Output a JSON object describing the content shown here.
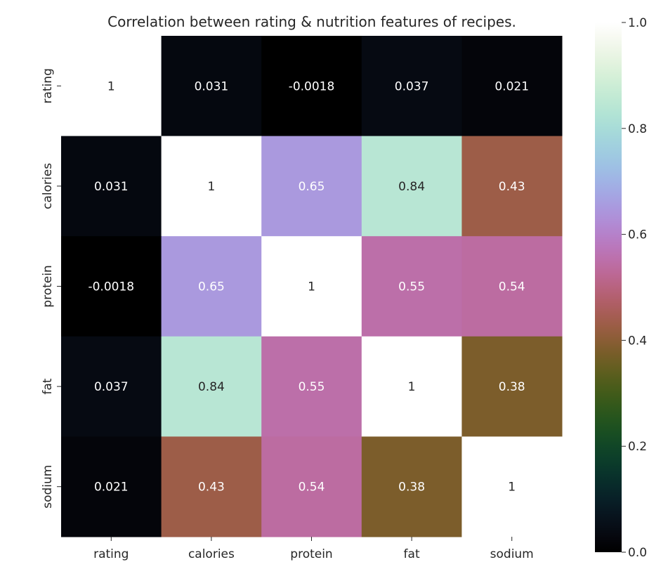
{
  "chart_data": {
    "type": "heatmap",
    "title": "Correlation between rating & nutrition features of recipes.",
    "xlabel": "",
    "ylabel": "",
    "x_labels": [
      "rating",
      "calories",
      "protein",
      "fat",
      "sodium"
    ],
    "y_labels": [
      "rating",
      "calories",
      "protein",
      "fat",
      "sodium"
    ],
    "values": [
      [
        1,
        0.031,
        -0.0018,
        0.037,
        0.021
      ],
      [
        0.031,
        1,
        0.65,
        0.84,
        0.43
      ],
      [
        -0.0018,
        0.65,
        1,
        0.55,
        0.54
      ],
      [
        0.037,
        0.84,
        0.55,
        1,
        0.38
      ],
      [
        0.021,
        0.43,
        0.54,
        0.38,
        1
      ]
    ],
    "annotations": [
      [
        "1",
        "0.031",
        "-0.0018",
        "0.037",
        "0.021"
      ],
      [
        "0.031",
        "1",
        "0.65",
        "0.84",
        "0.43"
      ],
      [
        "-0.0018",
        "0.65",
        "1",
        "0.55",
        "0.54"
      ],
      [
        "0.037",
        "0.84",
        "0.55",
        "1",
        "0.38"
      ],
      [
        "0.021",
        "0.43",
        "0.54",
        "0.38",
        "1"
      ]
    ],
    "colormap": "cubehelix",
    "vmin": 0.0,
    "vmax": 1.0,
    "colorbar": {
      "ticks": [
        0.0,
        0.2,
        0.4,
        0.6,
        0.8,
        1.0
      ],
      "tick_labels": [
        "0.0",
        "0.2",
        "0.4",
        "0.6",
        "0.8",
        "1.0"
      ],
      "placement": "right"
    },
    "grid": false,
    "annotation_colors": {
      "light": "#ffffff",
      "dark": "#262626"
    }
  }
}
